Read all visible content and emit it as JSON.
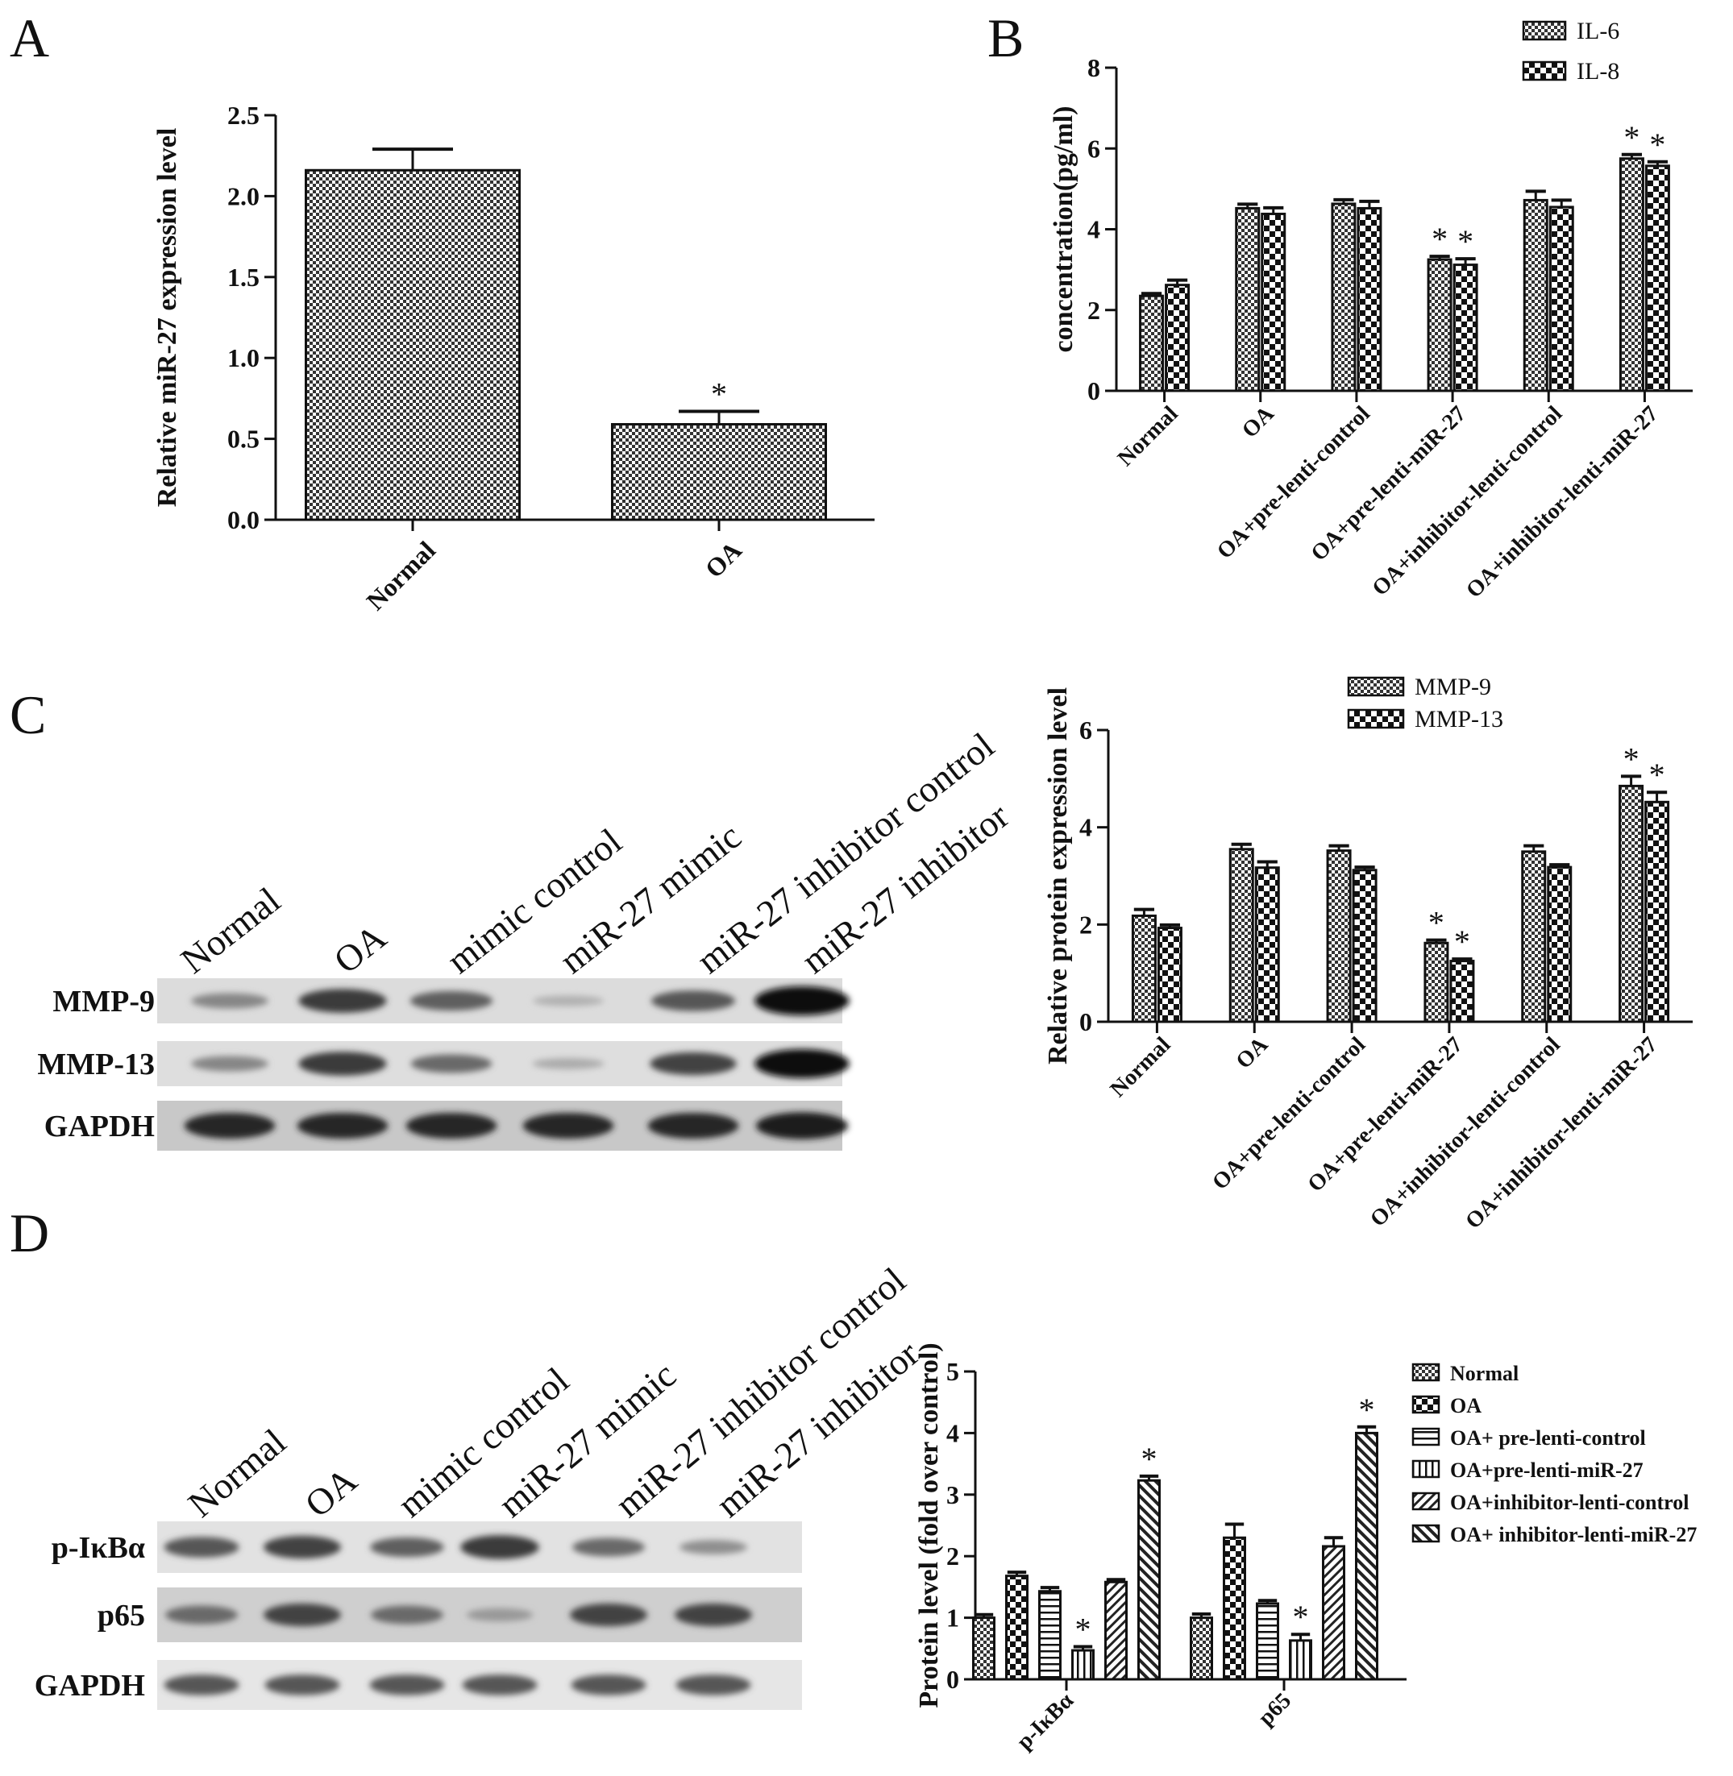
{
  "panels": {
    "A": "A",
    "B": "B",
    "C": "C",
    "D": "D"
  },
  "chart_data": [
    {
      "id": "A",
      "type": "bar",
      "categories": [
        "Normal",
        "OA"
      ],
      "values": [
        2.16,
        0.59
      ],
      "errors": [
        0.13,
        0.08
      ],
      "significance": [
        "",
        "*"
      ],
      "ylabel": "Relative miR-27 expression level",
      "ylim": [
        0,
        2.5
      ],
      "yticks": [
        "0.0",
        "0.5",
        "1.0",
        "1.5",
        "2.0",
        "2.5"
      ],
      "pattern": "checker"
    },
    {
      "id": "B",
      "type": "bar",
      "categories": [
        "Normal",
        "OA",
        "OA+pre-lenti-control",
        "OA+pre-lenti-miR-27",
        "OA+inhibitor-lenti-control",
        "OA+inhibitor-lenti-miR-27"
      ],
      "series": [
        {
          "name": "IL-6",
          "values": [
            2.35,
            4.52,
            4.63,
            3.25,
            4.72,
            5.75
          ],
          "errors": [
            0.06,
            0.1,
            0.1,
            0.08,
            0.22,
            0.1
          ],
          "significance": [
            "",
            "",
            "",
            "*",
            "",
            "*"
          ],
          "pattern": "checker"
        },
        {
          "name": "IL-8",
          "values": [
            2.62,
            4.38,
            4.52,
            3.12,
            4.55,
            5.57
          ],
          "errors": [
            0.12,
            0.15,
            0.17,
            0.15,
            0.17,
            0.1
          ],
          "significance": [
            "",
            "",
            "",
            "*",
            "",
            "*"
          ],
          "pattern": "cross"
        }
      ],
      "ylabel": "concentration(pg/ml)",
      "ylim": [
        0,
        8
      ],
      "yticks": [
        "0",
        "2",
        "4",
        "6",
        "8"
      ],
      "legend": "top-right"
    },
    {
      "id": "C",
      "type": "bar",
      "categories": [
        "Normal",
        "OA",
        "OA+pre-lenti-control",
        "OA+pre-lenti-miR-27",
        "OA+inhibitor-lenti-control",
        "OA+inhibitor-lenti-miR-27"
      ],
      "series": [
        {
          "name": "MMP-9",
          "values": [
            2.18,
            3.55,
            3.52,
            1.62,
            3.5,
            4.85
          ],
          "errors": [
            0.13,
            0.1,
            0.1,
            0.06,
            0.12,
            0.2
          ],
          "significance": [
            "",
            "",
            "",
            "*",
            "",
            "*"
          ],
          "pattern": "checker"
        },
        {
          "name": "MMP-13",
          "values": [
            1.93,
            3.17,
            3.12,
            1.25,
            3.18,
            4.52
          ],
          "errors": [
            0.06,
            0.12,
            0.06,
            0.04,
            0.05,
            0.2
          ],
          "significance": [
            "",
            "",
            "",
            "*",
            "",
            "*"
          ],
          "pattern": "cross"
        }
      ],
      "ylabel": "Relative protein expression level",
      "ylim": [
        0,
        6
      ],
      "yticks": [
        "0",
        "2",
        "4",
        "6"
      ],
      "legend": "top-left"
    },
    {
      "id": "D",
      "type": "bar",
      "categories": [
        "p-IκBα",
        "p65"
      ],
      "series": [
        {
          "name": "Normal",
          "values": [
            1.0,
            1.0
          ],
          "errors": [
            0.05,
            0.06
          ],
          "significance": [
            "",
            ""
          ],
          "pattern": "checker"
        },
        {
          "name": "OA",
          "values": [
            1.68,
            2.3
          ],
          "errors": [
            0.06,
            0.22
          ],
          "significance": [
            "",
            ""
          ],
          "pattern": "cross"
        },
        {
          "name": "OA+ pre-lenti-control",
          "values": [
            1.43,
            1.23
          ],
          "errors": [
            0.06,
            0.05
          ],
          "significance": [
            "",
            ""
          ],
          "pattern": "hlines"
        },
        {
          "name": "OA+pre-lenti-miR-27",
          "values": [
            0.47,
            0.63
          ],
          "errors": [
            0.06,
            0.1
          ],
          "significance": [
            "*",
            "*"
          ],
          "pattern": "vlines"
        },
        {
          "name": "OA+inhibitor-lenti-control",
          "values": [
            1.58,
            2.16
          ],
          "errors": [
            0.04,
            0.14
          ],
          "significance": [
            "",
            ""
          ],
          "pattern": "diag"
        },
        {
          "name": "OA+ inhibitor-lenti-miR-27",
          "values": [
            3.23,
            4.0
          ],
          "errors": [
            0.07,
            0.1
          ],
          "significance": [
            "*",
            "*"
          ],
          "pattern": "diag2"
        }
      ],
      "ylabel": "Protein level (fold over control)",
      "ylim": [
        0,
        5
      ],
      "yticks": [
        "0",
        "1",
        "2",
        "3",
        "4",
        "5"
      ],
      "legend": "right"
    }
  ],
  "blots": [
    {
      "id": "C",
      "lanes": [
        "Normal",
        "OA",
        "mimic control",
        "miR-27 mimic",
        "miR-27 inhibitor control",
        "miR-27 inhibitor"
      ],
      "rows": [
        {
          "label": "MMP-9",
          "intensity": [
            0.35,
            0.75,
            0.55,
            0.12,
            0.6,
            1.0
          ]
        },
        {
          "label": "MMP-13",
          "intensity": [
            0.35,
            0.75,
            0.5,
            0.15,
            0.7,
            1.0
          ]
        },
        {
          "label": "GAPDH",
          "intensity": [
            0.85,
            0.85,
            0.85,
            0.85,
            0.85,
            0.9
          ]
        }
      ]
    },
    {
      "id": "D",
      "lanes": [
        "Normal",
        "OA",
        "mimic control",
        "miR-27 mimic",
        "miR-27 inhibitor control",
        "miR-27 inhibitor"
      ],
      "rows": [
        {
          "label": "p-IκBα",
          "intensity": [
            0.6,
            0.7,
            0.55,
            0.75,
            0.5,
            0.3
          ]
        },
        {
          "label": "p65",
          "intensity": [
            0.5,
            0.7,
            0.5,
            0.25,
            0.7,
            0.7
          ]
        },
        {
          "label": "GAPDH",
          "intensity": [
            0.6,
            0.6,
            0.6,
            0.6,
            0.6,
            0.6
          ]
        }
      ]
    }
  ]
}
